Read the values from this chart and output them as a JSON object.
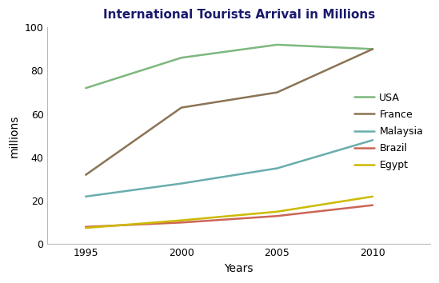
{
  "title": "International Tourists Arrival in Millions",
  "xlabel": "Years",
  "ylabel": "millions",
  "years": [
    1995,
    2000,
    2005,
    2010
  ],
  "series": [
    {
      "name": "USA",
      "values": [
        72,
        86,
        92,
        90
      ],
      "color": "#7db87d",
      "linewidth": 1.8
    },
    {
      "name": "France",
      "values": [
        32,
        63,
        70,
        90
      ],
      "color": "#8b7355",
      "linewidth": 1.8
    },
    {
      "name": "Malaysia",
      "values": [
        22,
        28,
        35,
        48
      ],
      "color": "#6aadad",
      "linewidth": 1.8
    },
    {
      "name": "Brazil",
      "values": [
        8,
        10,
        13,
        18
      ],
      "color": "#cc6655",
      "linewidth": 1.8
    },
    {
      "name": "Egypt",
      "values": [
        7.5,
        11,
        15,
        22
      ],
      "color": "#ccbb00",
      "linewidth": 1.8
    }
  ],
  "ylim": [
    0,
    100
  ],
  "yticks": [
    0,
    20,
    40,
    60,
    80,
    100
  ],
  "xticks": [
    1995,
    2000,
    2005,
    2010
  ],
  "xlim": [
    1993,
    2013
  ],
  "title_color": "#1a1a6e",
  "title_fontsize": 11,
  "legend_fontsize": 9,
  "axis_label_fontsize": 10,
  "tick_fontsize": 9,
  "background_color": "#ffffff"
}
